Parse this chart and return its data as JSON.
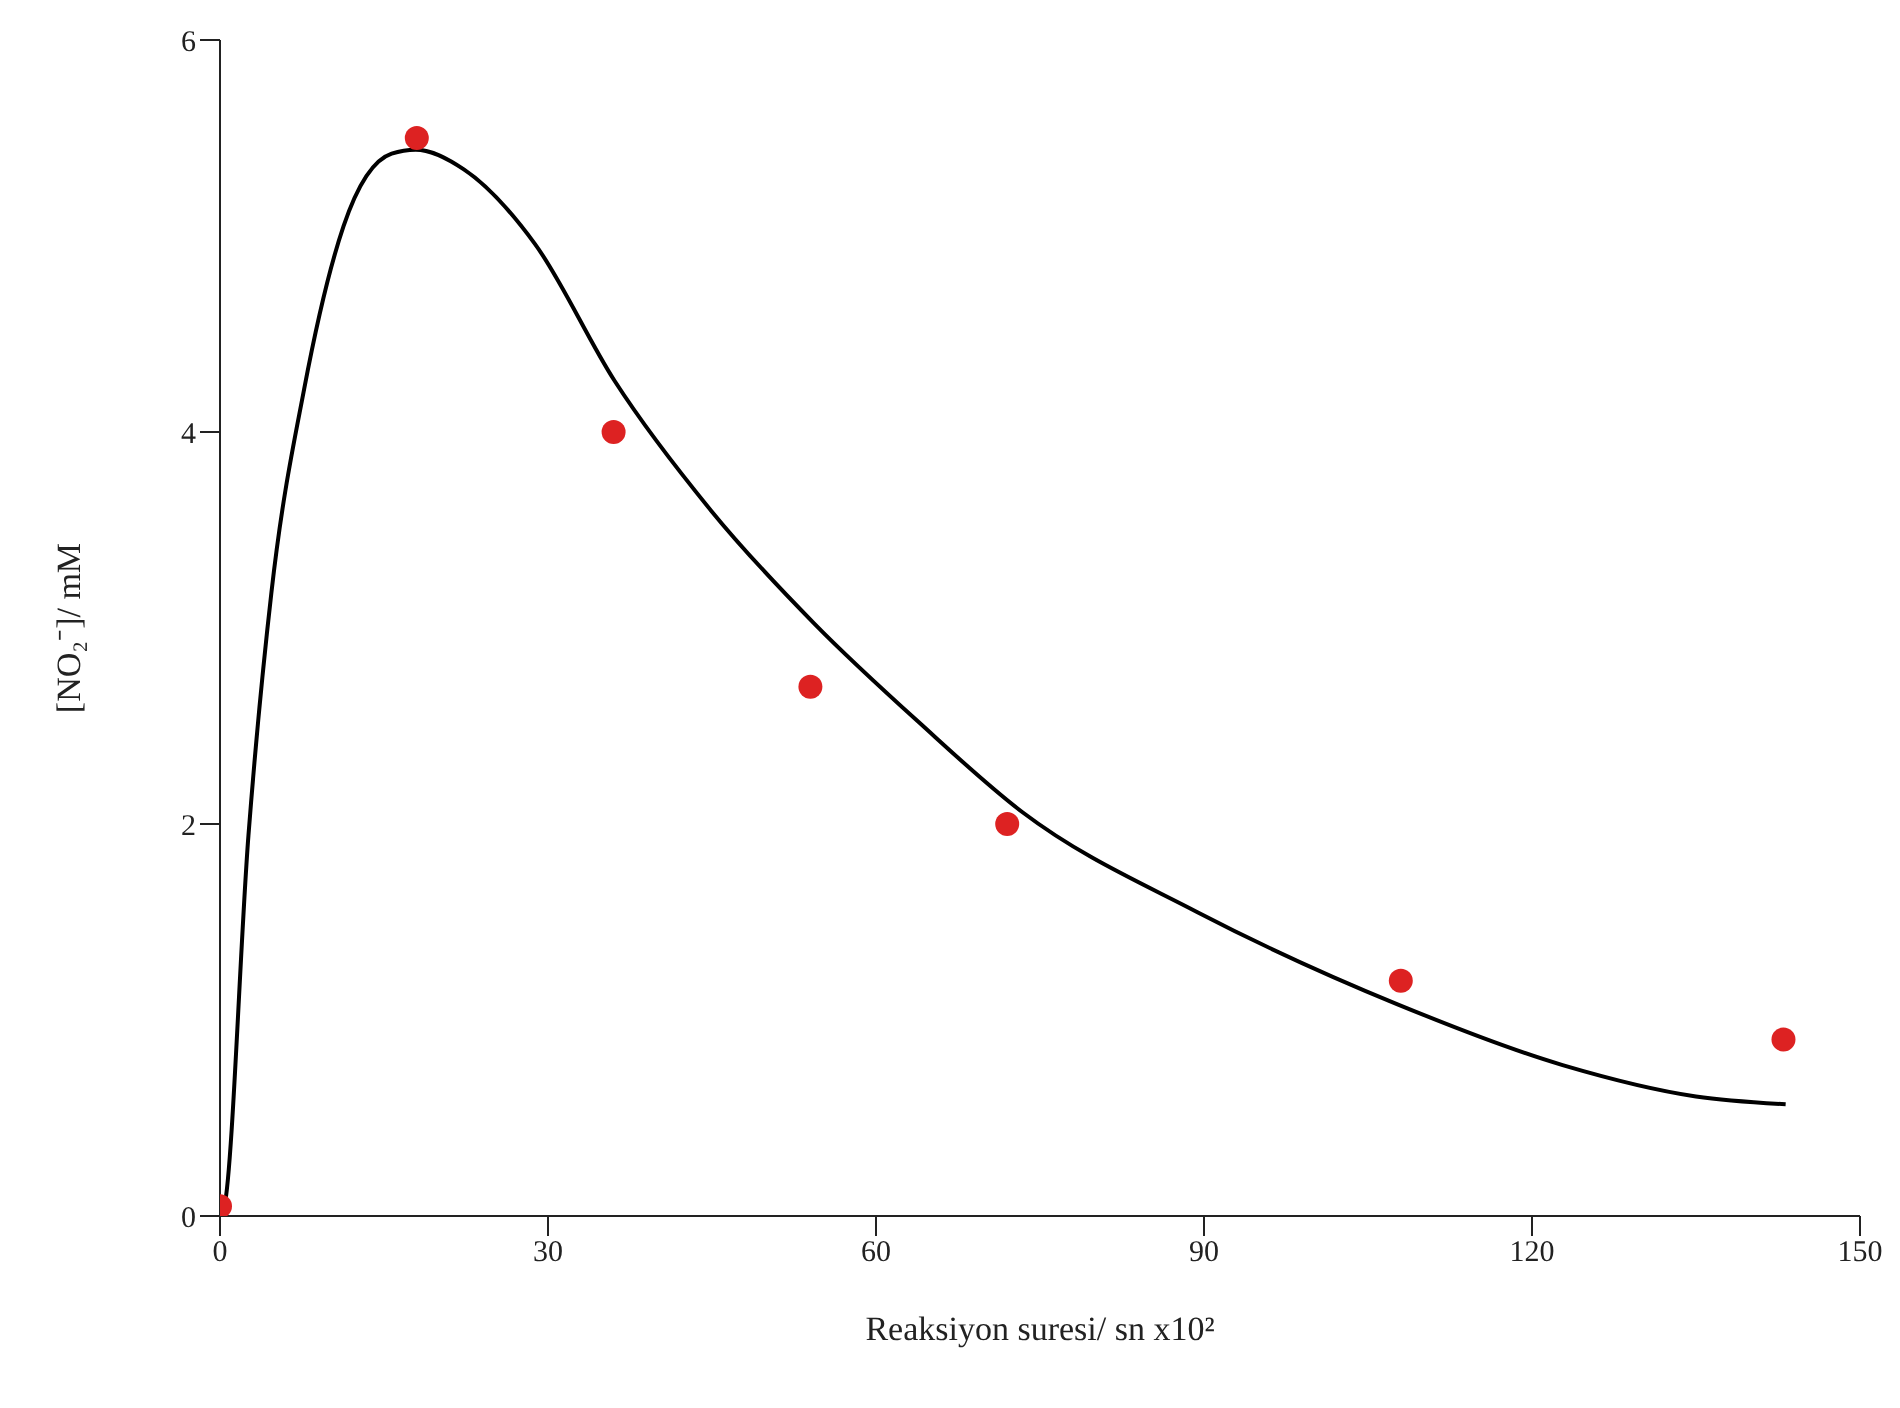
{
  "chart_data": {
    "type": "scatter",
    "xlabel": "Reaksiyon suresi/ sn x10²",
    "ylabel": "[NO₂⁻]/ mM",
    "xlim": [
      0,
      150
    ],
    "xticks": [
      0,
      30,
      60,
      90,
      120,
      150
    ],
    "ylim": [
      0,
      6
    ],
    "yticks": [
      0,
      2,
      4,
      6
    ],
    "grid": false,
    "series": [
      {
        "color": "#dd2222",
        "marker": "circle",
        "x": [
          0,
          18,
          36,
          54,
          72,
          108,
          143
        ],
        "values": [
          0.05,
          5.5,
          4.0,
          2.7,
          2.0,
          1.2,
          0.9
        ]
      },
      {
        "type": "line",
        "color": "#000000",
        "marker": "none",
        "line_style": "solid",
        "x": [
          0,
          0.4,
          2.6,
          4.7,
          7.7,
          11.3,
          15.7,
          17.9,
          22.3,
          28.8,
          36.1,
          44.9,
          54.4,
          63.9,
          73.4,
          89.4,
          107.7,
          122.8,
          135,
          143.2
        ],
        "values": [
          0,
          0.05,
          1.94,
          3.18,
          4.22,
          5.05,
          5.42,
          5.44,
          5.34,
          4.96,
          4.26,
          3.6,
          3.02,
          2.52,
          2.06,
          1.55,
          1.08,
          0.77,
          0.61,
          0.57
        ]
      }
    ]
  }
}
